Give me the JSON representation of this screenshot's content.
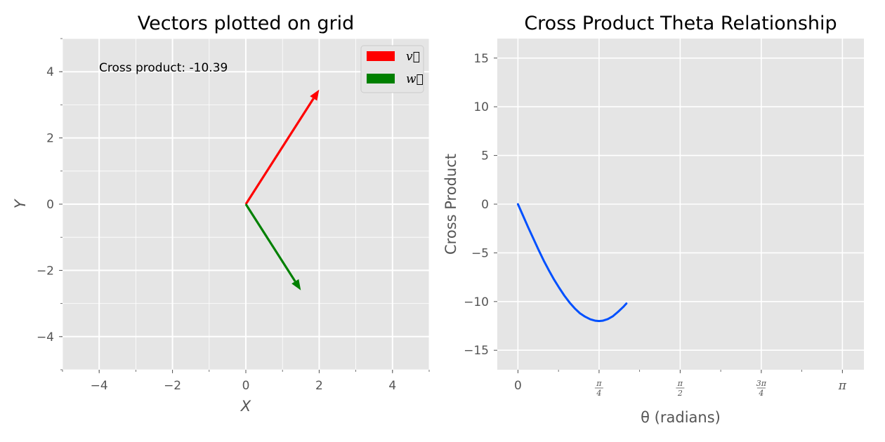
{
  "colors": {
    "background": "#ffffff",
    "axes_face": "#e5e5e5",
    "grid": "#ffffff",
    "tick_text": "#555555",
    "vector_v": "#ff0000",
    "vector_w": "#008000",
    "curve": "#0050ff"
  },
  "chart_data": [
    {
      "type": "vector",
      "title": "Vectors plotted on grid",
      "xlabel": "X",
      "ylabel": "Y",
      "xlim": [
        -5,
        5
      ],
      "ylim": [
        -5,
        5
      ],
      "xticks": [
        -4,
        -2,
        0,
        2,
        4
      ],
      "yticks": [
        -4,
        -2,
        0,
        2,
        4
      ],
      "xtick_labels": [
        "−4",
        "−2",
        "0",
        "2",
        "4"
      ],
      "ytick_labels": [
        "−4",
        "−2",
        "0",
        "2",
        "4"
      ],
      "grid": true,
      "legend_position": "top-right",
      "annotation": "Cross product: -10.39",
      "vectors": [
        {
          "name": "v⃗",
          "tail": [
            0,
            0
          ],
          "head": [
            2,
            3.46
          ],
          "color": "#ff0000"
        },
        {
          "name": "w⃗",
          "tail": [
            0,
            0
          ],
          "head": [
            1.5,
            -2.6
          ],
          "color": "#008000"
        }
      ]
    },
    {
      "type": "line",
      "title": "Cross Product Theta Relationship",
      "xlabel": "θ (radians)",
      "ylabel": "Cross Product",
      "xlim": [
        -0.2,
        3.35
      ],
      "ylim": [
        -17,
        17
      ],
      "xticks": [
        0,
        0.7854,
        1.5708,
        2.3562,
        3.1416
      ],
      "xtick_labels": [
        {
          "kind": "plain",
          "text": "0"
        },
        {
          "kind": "frac",
          "num": "π",
          "den": "4"
        },
        {
          "kind": "frac",
          "num": "π",
          "den": "2"
        },
        {
          "kind": "frac",
          "num": "3π",
          "den": "4"
        },
        {
          "kind": "plain",
          "text": "π"
        }
      ],
      "yticks": [
        -15,
        -10,
        -5,
        0,
        5,
        10,
        15
      ],
      "ytick_labels": [
        "−15",
        "−10",
        "−5",
        "0",
        "5",
        "10",
        "15"
      ],
      "grid": true,
      "series": [
        {
          "color": "#0050ff",
          "x": [
            0,
            0.05,
            0.1,
            0.15,
            0.2,
            0.25,
            0.3,
            0.35,
            0.4,
            0.45,
            0.5,
            0.55,
            0.6,
            0.65,
            0.7,
            0.75,
            0.7854,
            0.82,
            0.87,
            0.92,
            0.97,
            1.02,
            1.05
          ],
          "y": [
            0,
            -1.2,
            -2.4,
            -3.55,
            -4.7,
            -5.8,
            -6.8,
            -7.75,
            -8.6,
            -9.4,
            -10.1,
            -10.7,
            -11.2,
            -11.55,
            -11.82,
            -11.97,
            -12.0,
            -11.97,
            -11.8,
            -11.5,
            -11.05,
            -10.55,
            -10.2
          ]
        }
      ]
    }
  ]
}
